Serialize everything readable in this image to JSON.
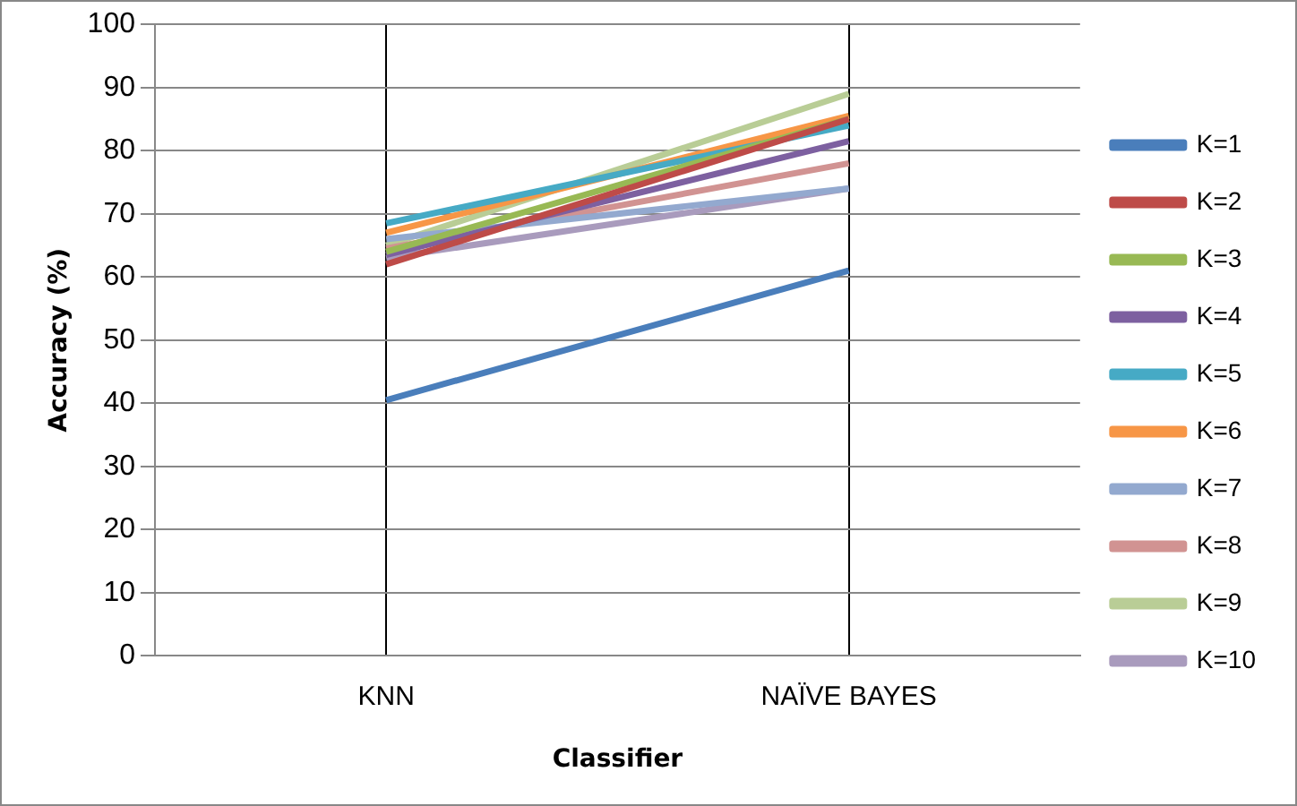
{
  "chart_data": {
    "type": "line",
    "xlabel": "Classifier",
    "ylabel": "Accuracy (%)",
    "categories": [
      "KNN",
      "NAÏVE BAYES"
    ],
    "ylim": [
      0,
      100
    ],
    "yticks": [
      0,
      10,
      20,
      30,
      40,
      50,
      60,
      70,
      80,
      90,
      100
    ],
    "grid": true,
    "legend": "right",
    "marker": "none",
    "series": [
      {
        "name": "K=1",
        "color": "#4a7ebb",
        "values": [
          40.5,
          61
        ]
      },
      {
        "name": "K=2",
        "color": "#be4b48",
        "values": [
          62,
          85
        ]
      },
      {
        "name": "K=3",
        "color": "#98b954",
        "values": [
          64,
          85
        ]
      },
      {
        "name": "K=4",
        "color": "#7d60a0",
        "values": [
          63.5,
          81.5
        ]
      },
      {
        "name": "K=5",
        "color": "#46aac5",
        "values": [
          68.5,
          84
        ]
      },
      {
        "name": "K=6",
        "color": "#f79646",
        "values": [
          67,
          85.5
        ]
      },
      {
        "name": "K=7",
        "color": "#93a9cf",
        "values": [
          66,
          74
        ]
      },
      {
        "name": "K=8",
        "color": "#d19392",
        "values": [
          64.5,
          78
        ]
      },
      {
        "name": "K=9",
        "color": "#b9cd96",
        "values": [
          65,
          89
        ]
      },
      {
        "name": "K=10",
        "color": "#a99bbd",
        "values": [
          63,
          74
        ]
      }
    ]
  }
}
